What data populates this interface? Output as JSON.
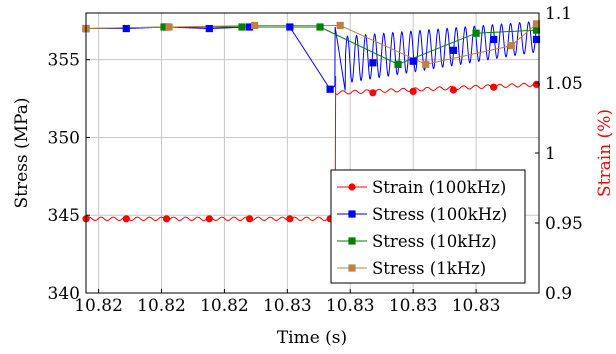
{
  "chart_data": {
    "type": "line",
    "xlabel": "Time (s)",
    "ylabel_left": "Stress (MPa)",
    "ylabel_right": "Strain (%)",
    "xlim": [
      10.8195,
      10.8375
    ],
    "ylim_left": [
      340,
      358
    ],
    "ylim_right": [
      0.9,
      1.1
    ],
    "x_tick_values": [
      10.82,
      10.8225,
      10.825,
      10.8275,
      10.83,
      10.8325,
      10.835
    ],
    "x_tick_labels": [
      "10.82",
      "10.82",
      "10.82",
      "10.83",
      "10.83",
      "10.83",
      "10.83"
    ],
    "y_left_ticks": [
      "340",
      "345",
      "350",
      "355"
    ],
    "y_left_tick_values": [
      340,
      345,
      350,
      355
    ],
    "y_right_ticks": [
      "0.9",
      "0.95",
      "1",
      "1.05",
      "1.1"
    ],
    "y_right_tick_values": [
      0.9,
      0.95,
      1.0,
      1.05,
      1.1
    ],
    "grid": true,
    "legend_position": "bottom-right",
    "series": [
      {
        "name": "Strain (100kHz)",
        "axis": "right",
        "color": "#ff0000",
        "marker": "circle",
        "jump_x": 10.8294,
        "base_before": 0.953,
        "start_after": 1.043,
        "end_after": 1.049,
        "ripple": 0.0012,
        "marker_x": [
          10.8195,
          10.8211,
          10.8227,
          10.8244,
          10.826,
          10.8276,
          10.8292,
          10.8309,
          10.8325,
          10.8341,
          10.8357,
          10.8374
        ],
        "marker_y": [
          0.953,
          0.953,
          0.953,
          0.953,
          0.953,
          0.953,
          0.953,
          1.043,
          1.044,
          1.045,
          1.047,
          1.049
        ]
      },
      {
        "name": "Stress (100kHz)",
        "axis": "left",
        "color": "#0000ff",
        "marker": "square",
        "marker_x": [
          10.8195,
          10.8211,
          10.8227,
          10.8244,
          10.826,
          10.8276,
          10.8292,
          10.8309,
          10.8325,
          10.8341,
          10.8357,
          10.8374
        ],
        "marker_y": [
          357.0,
          357.0,
          357.1,
          357.0,
          357.1,
          357.1,
          353.1,
          354.8,
          354.9,
          355.6,
          356.3,
          356.3
        ],
        "oscillation": {
          "start_x": 10.8298,
          "amplitude": 1.5,
          "period": 0.00036
        }
      },
      {
        "name": "Stress (10kHz)",
        "axis": "left",
        "color": "#008000",
        "marker": "square",
        "marker_x": [
          10.8195,
          10.8226,
          10.8257,
          10.8288,
          10.8319,
          10.835,
          10.8374
        ],
        "marker_y": [
          357.0,
          357.1,
          357.1,
          357.1,
          354.7,
          356.7,
          356.9
        ]
      },
      {
        "name": "Stress (1kHz)",
        "axis": "left",
        "color": "#bf8040",
        "marker": "square",
        "marker_x": [
          10.8195,
          10.8228,
          10.8262,
          10.8296,
          10.833,
          10.8364,
          10.8374
        ],
        "marker_y": [
          357.0,
          357.1,
          357.2,
          357.2,
          354.7,
          355.9,
          357.3
        ]
      }
    ]
  }
}
